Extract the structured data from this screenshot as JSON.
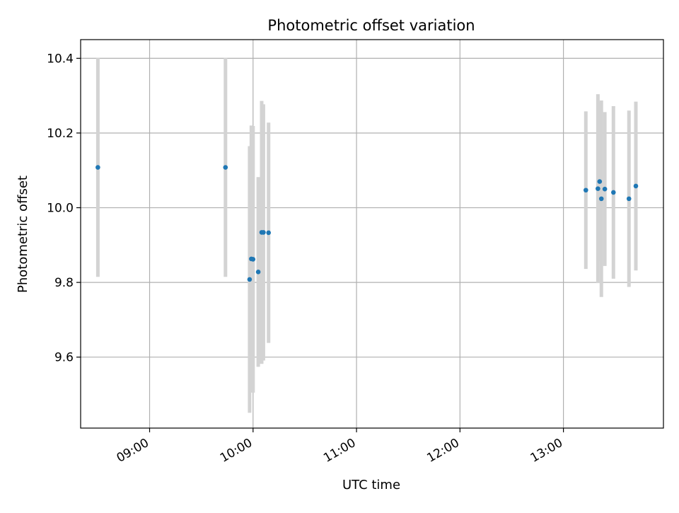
{
  "chart_data": {
    "type": "scatter",
    "title": "Photometric offset variation",
    "xlabel": "UTC time",
    "ylabel": "Photometric offset",
    "x_tick_labels": [
      "09:00",
      "10:00",
      "11:00",
      "12:00",
      "13:00"
    ],
    "x_ticks": [
      "09:00",
      "10:00",
      "11:00",
      "12:00",
      "13:00"
    ],
    "y_ticks": [
      9.6,
      9.8,
      10.0,
      10.2,
      10.4
    ],
    "xlim": [
      "08:20",
      "13:58"
    ],
    "ylim": [
      9.41,
      10.45
    ],
    "grid": true,
    "error_bar_color": "#d3d3d3",
    "point_color": "#1f77b4",
    "points": [
      {
        "x": "08:30",
        "y": 10.108,
        "err": 0.293
      },
      {
        "x": "09:44",
        "y": 10.108,
        "err": 0.293
      },
      {
        "x": "09:58",
        "y": 9.808,
        "err": 0.357
      },
      {
        "x": "09:59",
        "y": 9.863,
        "err": 0.357
      },
      {
        "x": "10:00",
        "y": 9.862,
        "err": 0.357
      },
      {
        "x": "10:03",
        "y": 9.828,
        "err": 0.254
      },
      {
        "x": "10:05",
        "y": 9.934,
        "err": 0.352
      },
      {
        "x": "10:06",
        "y": 9.934,
        "err": 0.343
      },
      {
        "x": "10:09",
        "y": 9.933,
        "err": 0.295
      },
      {
        "x": "13:13",
        "y": 10.047,
        "err": 0.211
      },
      {
        "x": "13:20",
        "y": 10.051,
        "err": 0.253
      },
      {
        "x": "13:21",
        "y": 10.07,
        "err": 0.213
      },
      {
        "x": "13:22",
        "y": 10.024,
        "err": 0.263
      },
      {
        "x": "13:24",
        "y": 10.05,
        "err": 0.206
      },
      {
        "x": "13:29",
        "y": 10.041,
        "err": 0.231
      },
      {
        "x": "13:38",
        "y": 10.024,
        "err": 0.236
      },
      {
        "x": "13:42",
        "y": 10.058,
        "err": 0.226
      }
    ]
  }
}
